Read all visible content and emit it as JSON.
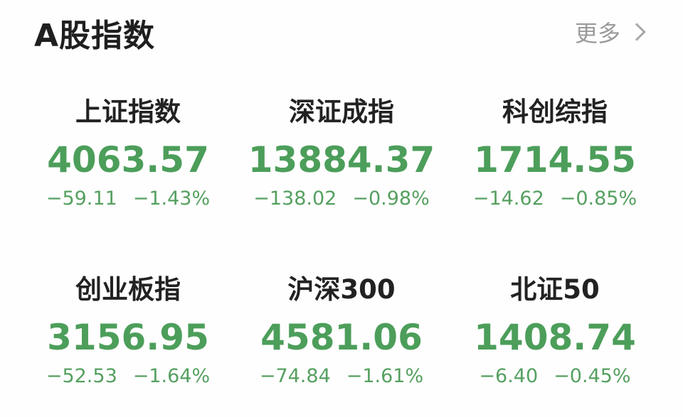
{
  "header": {
    "title": "A股指数",
    "more_label": "更多"
  },
  "colors": {
    "down": "#4c9e5a",
    "title": "#1f1f1f",
    "more": "#9a9a9a"
  },
  "indices": [
    {
      "name": "上证指数",
      "price": "4063.57",
      "change": "−59.11",
      "pct": "−1.43%"
    },
    {
      "name": "深证成指",
      "price": "13884.37",
      "change": "−138.02",
      "pct": "−0.98%"
    },
    {
      "name": "科创综指",
      "price": "1714.55",
      "change": "−14.62",
      "pct": "−0.85%"
    },
    {
      "name": "创业板指",
      "price": "3156.95",
      "change": "−52.53",
      "pct": "−1.64%"
    },
    {
      "name": "沪深300",
      "price": "4581.06",
      "change": "−74.84",
      "pct": "−1.61%"
    },
    {
      "name": "北证50",
      "price": "1408.74",
      "change": "−6.40",
      "pct": "−0.45%"
    }
  ]
}
